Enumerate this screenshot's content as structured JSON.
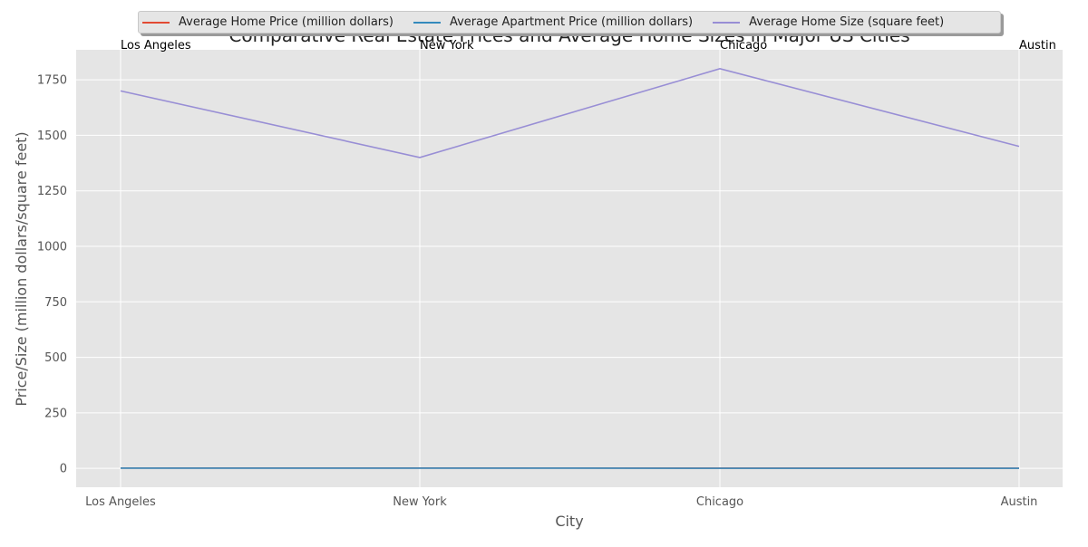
{
  "chart_data": {
    "type": "line",
    "title": "Comparative Real Estate Prices and Average Home Sizes in Major US Cities",
    "xlabel": "City",
    "ylabel": "Price/Size (million dollars/square feet)",
    "categories": [
      "Los Angeles",
      "New York",
      "Chicago",
      "Austin"
    ],
    "ylim": [
      -85,
      1885
    ],
    "yticks": [
      0,
      250,
      500,
      750,
      1000,
      1250,
      1500,
      1750
    ],
    "grid": true,
    "legend_position": "top-center",
    "series": [
      {
        "name": "Average Home Price (million dollars)",
        "values": [
          1.2,
          1.5,
          0.9,
          0.7
        ],
        "color": "#E24A33"
      },
      {
        "name": "Average Apartment Price (million dollars)",
        "values": [
          0.8,
          1.1,
          0.5,
          0.4
        ],
        "color": "#348ABD"
      },
      {
        "name": "Average Home Size (square feet)",
        "values": [
          1700,
          1400,
          1800,
          1450
        ],
        "color": "#988ED5"
      }
    ],
    "annotations": [
      "Los Angeles",
      "New York",
      "Chicago",
      "Austin"
    ]
  }
}
